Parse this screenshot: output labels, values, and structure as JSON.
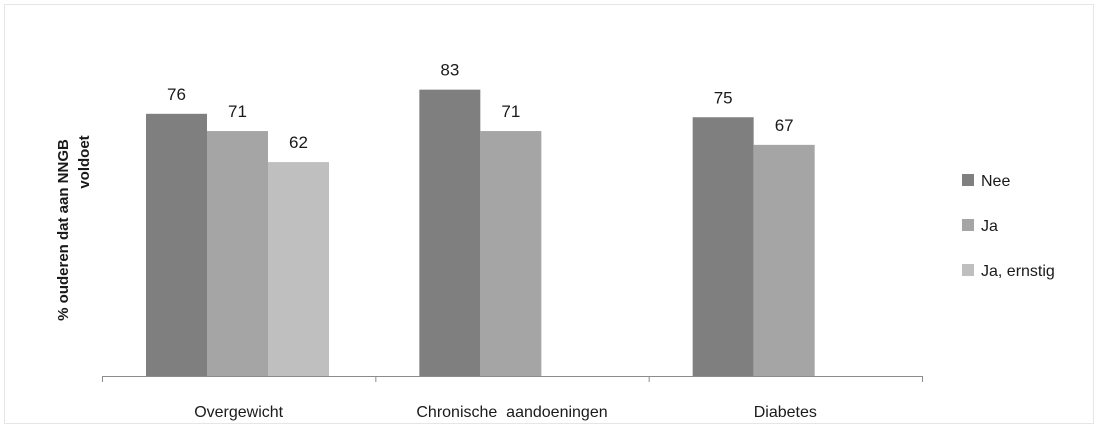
{
  "chart_data": {
    "type": "bar",
    "title": "",
    "xlabel": "",
    "ylabel": "% ouderen dat aan NNGB voldoet",
    "ylabel_lines": [
      "% ouderen dat aan NNGB",
      "voldoet"
    ],
    "ylim": [
      0,
      100
    ],
    "grid": false,
    "legend_position": "right",
    "categories": [
      "Overgewicht",
      "Chronische  aandoeningen",
      "Diabetes"
    ],
    "series": [
      {
        "name": "Nee",
        "color": "#7f7f7f",
        "values": [
          76,
          83,
          75
        ]
      },
      {
        "name": "Ja",
        "color": "#a5a5a5",
        "values": [
          71,
          71,
          67
        ]
      },
      {
        "name": "Ja, ernstig",
        "color": "#bfbfbf",
        "values": [
          62,
          null,
          null
        ]
      }
    ]
  }
}
